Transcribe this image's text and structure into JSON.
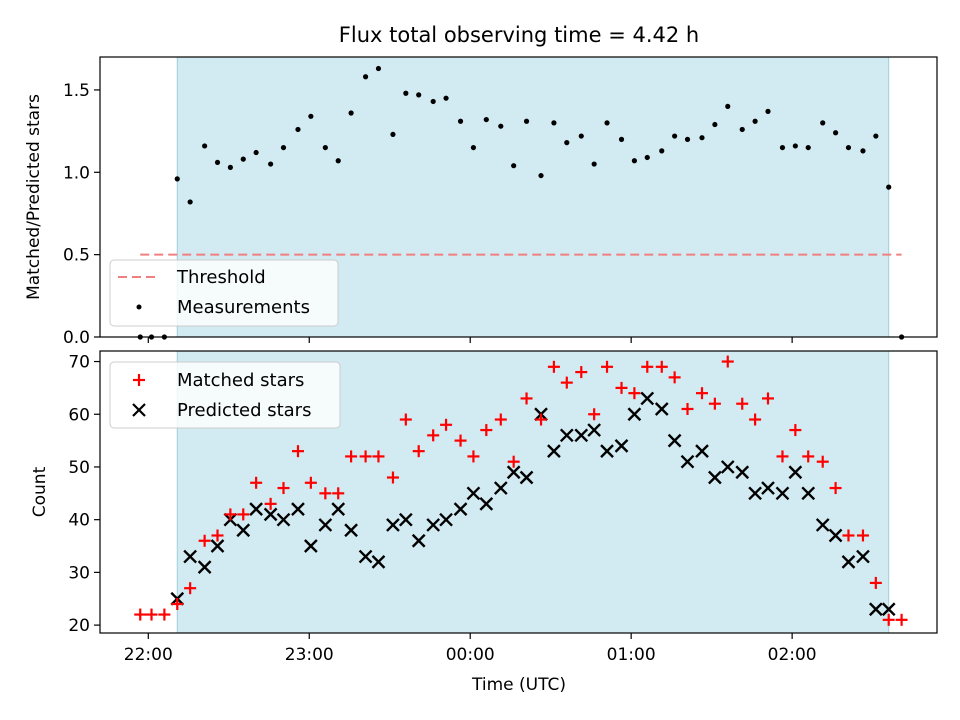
{
  "chart_data": [
    {
      "type": "scatter",
      "title": "Flux total observing time = 4.42 h",
      "xlabel": "",
      "ylabel": "Matched/Predicted stars",
      "ylim": [
        0,
        1.7
      ],
      "yticks": [
        "0.0",
        "0.5",
        "1.0",
        "1.5"
      ],
      "xlim_hours": [
        -2.3,
        2.9
      ],
      "xticks": [
        "22:00",
        "23:00",
        "00:00",
        "01:00",
        "02:00"
      ],
      "observing_window_hours": [
        -1.82,
        2.6
      ],
      "threshold": {
        "name": "Threshold",
        "value": 0.5,
        "color": "#f08080"
      },
      "series": [
        {
          "name": "Measurements",
          "marker": "dot",
          "color": "#000000",
          "x": [
            -2.05,
            -1.98,
            -1.9,
            -1.82,
            -1.74,
            -1.65,
            -1.57,
            -1.49,
            -1.41,
            -1.33,
            -1.24,
            -1.16,
            -1.07,
            -0.99,
            -0.9,
            -0.82,
            -0.74,
            -0.65,
            -0.57,
            -0.48,
            -0.4,
            -0.32,
            -0.23,
            -0.15,
            -0.06,
            0.02,
            0.1,
            0.19,
            0.27,
            0.35,
            0.44,
            0.52,
            0.6,
            0.69,
            0.77,
            0.85,
            0.94,
            1.02,
            1.1,
            1.19,
            1.27,
            1.35,
            1.44,
            1.52,
            1.6,
            1.69,
            1.77,
            1.85,
            1.94,
            2.02,
            2.1,
            2.19,
            2.27,
            2.35,
            2.44,
            2.52,
            2.6,
            2.68
          ],
          "y": [
            0.0,
            0.0,
            0.0,
            0.96,
            0.82,
            1.16,
            1.06,
            1.03,
            1.08,
            1.12,
            1.05,
            1.15,
            1.26,
            1.34,
            1.15,
            1.07,
            1.36,
            1.58,
            1.63,
            1.23,
            1.48,
            1.47,
            1.43,
            1.45,
            1.31,
            1.15,
            1.32,
            1.28,
            1.04,
            1.31,
            0.98,
            1.3,
            1.18,
            1.22,
            1.05,
            1.3,
            1.2,
            1.07,
            1.09,
            1.13,
            1.22,
            1.2,
            1.21,
            1.29,
            1.4,
            1.26,
            1.31,
            1.37,
            1.15,
            1.16,
            1.15,
            1.3,
            1.24,
            1.15,
            1.13,
            1.22,
            0.91,
            0.0
          ]
        }
      ],
      "legend": {
        "position": "lower-left",
        "entries": [
          "Threshold",
          "Measurements"
        ]
      },
      "grid": false
    },
    {
      "type": "scatter",
      "title": "",
      "xlabel": "Time (UTC)",
      "ylabel": "Count",
      "ylim": [
        18.5,
        72
      ],
      "yticks": [
        "20",
        "30",
        "40",
        "50",
        "60",
        "70"
      ],
      "xlim_hours": [
        -2.3,
        2.9
      ],
      "xticks": [
        "22:00",
        "23:00",
        "00:00",
        "01:00",
        "02:00"
      ],
      "observing_window_hours": [
        -1.82,
        2.6
      ],
      "series": [
        {
          "name": "Matched stars",
          "marker": "plus",
          "color": "#ff0000",
          "x": [
            -2.05,
            -1.98,
            -1.9,
            -1.82,
            -1.74,
            -1.65,
            -1.57,
            -1.49,
            -1.41,
            -1.33,
            -1.24,
            -1.16,
            -1.07,
            -0.99,
            -0.9,
            -0.82,
            -0.74,
            -0.65,
            -0.57,
            -0.48,
            -0.4,
            -0.32,
            -0.23,
            -0.15,
            -0.06,
            0.02,
            0.1,
            0.19,
            0.27,
            0.35,
            0.44,
            0.52,
            0.6,
            0.69,
            0.77,
            0.85,
            0.94,
            1.02,
            1.1,
            1.19,
            1.27,
            1.35,
            1.44,
            1.52,
            1.6,
            1.69,
            1.77,
            1.85,
            1.94,
            2.02,
            2.1,
            2.19,
            2.27,
            2.35,
            2.44,
            2.52,
            2.6,
            2.68
          ],
          "y": [
            22,
            22,
            22,
            24,
            27,
            36,
            37,
            41,
            41,
            47,
            43,
            46,
            53,
            47,
            45,
            45,
            52,
            52,
            52,
            48,
            59,
            53,
            56,
            58,
            55,
            52,
            57,
            59,
            51,
            63,
            59,
            69,
            66,
            68,
            60,
            69,
            65,
            64,
            69,
            69,
            67,
            61,
            64,
            62,
            70,
            62,
            59,
            63,
            52,
            57,
            52,
            51,
            46,
            37,
            37,
            28,
            21,
            21
          ]
        },
        {
          "name": "Predicted stars",
          "marker": "x",
          "color": "#000000",
          "x": [
            -1.82,
            -1.74,
            -1.65,
            -1.57,
            -1.49,
            -1.41,
            -1.33,
            -1.24,
            -1.16,
            -1.07,
            -0.99,
            -0.9,
            -0.82,
            -0.74,
            -0.65,
            -0.57,
            -0.48,
            -0.4,
            -0.32,
            -0.23,
            -0.15,
            -0.06,
            0.02,
            0.1,
            0.19,
            0.27,
            0.35,
            0.44,
            0.52,
            0.6,
            0.69,
            0.77,
            0.85,
            0.94,
            1.02,
            1.1,
            1.19,
            1.27,
            1.35,
            1.44,
            1.52,
            1.6,
            1.69,
            1.77,
            1.85,
            1.94,
            2.02,
            2.1,
            2.19,
            2.27,
            2.35,
            2.44,
            2.52,
            2.6
          ],
          "y": [
            25,
            33,
            31,
            35,
            40,
            38,
            42,
            41,
            40,
            42,
            35,
            39,
            42,
            38,
            33,
            32,
            39,
            40,
            36,
            39,
            40,
            42,
            45,
            43,
            46,
            49,
            48,
            60,
            53,
            56,
            56,
            57,
            53,
            54,
            60,
            63,
            61,
            55,
            51,
            53,
            48,
            50,
            49,
            45,
            46,
            45,
            49,
            45,
            39,
            37,
            32,
            33,
            23,
            23
          ]
        }
      ],
      "legend": {
        "position": "upper-left",
        "entries": [
          "Matched stars",
          "Predicted stars"
        ]
      },
      "grid": false
    }
  ]
}
